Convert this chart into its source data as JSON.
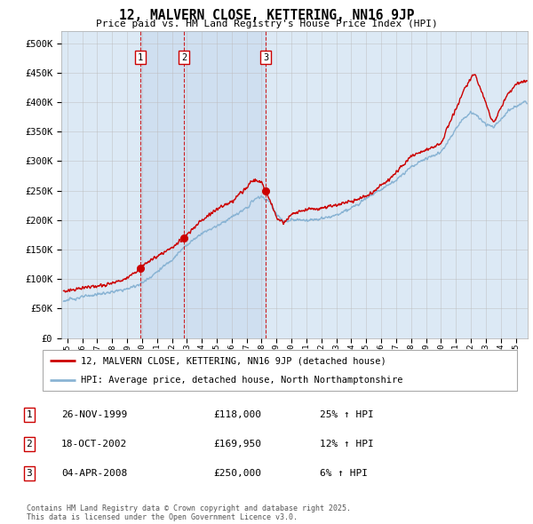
{
  "title": "12, MALVERN CLOSE, KETTERING, NN16 9JP",
  "subtitle": "Price paid vs. HM Land Registry's House Price Index (HPI)",
  "bg_color": "#dce9f5",
  "ylim": [
    0,
    520000
  ],
  "yticks": [
    0,
    50000,
    100000,
    150000,
    200000,
    250000,
    300000,
    350000,
    400000,
    450000,
    500000
  ],
  "ytick_labels": [
    "£0",
    "£50K",
    "£100K",
    "£150K",
    "£200K",
    "£250K",
    "£300K",
    "£350K",
    "£400K",
    "£450K",
    "£500K"
  ],
  "sale_dates": [
    1999.9,
    2002.8,
    2008.27
  ],
  "sale_prices": [
    118000,
    169950,
    250000
  ],
  "sale_labels": [
    "1",
    "2",
    "3"
  ],
  "legend_line1": "12, MALVERN CLOSE, KETTERING, NN16 9JP (detached house)",
  "legend_line2": "HPI: Average price, detached house, North Northamptonshire",
  "table_data": [
    [
      "1",
      "26-NOV-1999",
      "£118,000",
      "25% ↑ HPI"
    ],
    [
      "2",
      "18-OCT-2002",
      "£169,950",
      "12% ↑ HPI"
    ],
    [
      "3",
      "04-APR-2008",
      "£250,000",
      "6% ↑ HPI"
    ]
  ],
  "footnote": "Contains HM Land Registry data © Crown copyright and database right 2025.\nThis data is licensed under the Open Government Licence v3.0.",
  "red_color": "#cc0000",
  "blue_color": "#8ab4d4",
  "blue_fill_color": "#c8dff0",
  "vline_color": "#cc0000",
  "grid_color": "#bbbbbb",
  "xlim_left": 1994.6,
  "xlim_right": 2025.8
}
